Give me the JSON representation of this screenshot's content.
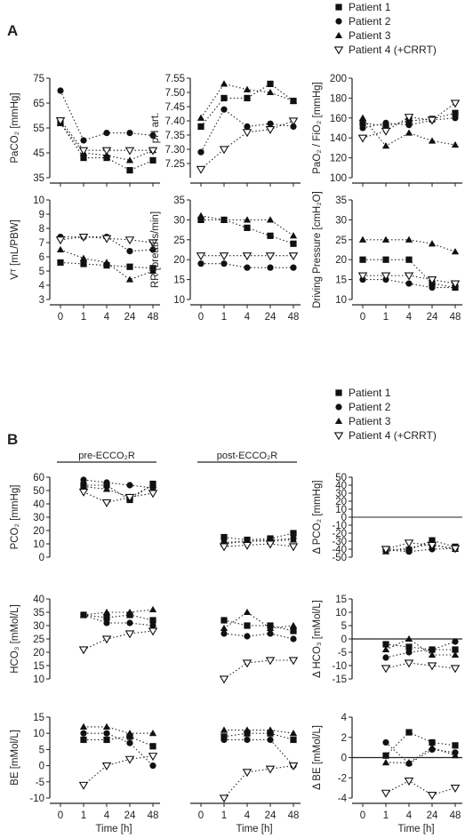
{
  "figure": {
    "panel_a_letter": "A",
    "panel_b_letter": "B",
    "legend_a": [
      {
        "label": "Patient 1",
        "marker": "square"
      },
      {
        "label": "Patient 2",
        "marker": "circle"
      },
      {
        "label": "Patient 3",
        "marker": "triangle"
      },
      {
        "label": "Patient 4 (+CRRT)",
        "marker": "open-triangle-down"
      }
    ],
    "legend_b": [
      {
        "label": "Patient 1",
        "marker": "square"
      },
      {
        "label": "Patient 2",
        "marker": "circle"
      },
      {
        "label": "Patient 3",
        "marker": "triangle"
      },
      {
        "label": "Patient 4 (+CRRT)",
        "marker": "open-triangle-down"
      }
    ],
    "xlabel": "Time [h]",
    "pre_label": "pre-ECCO₂R",
    "post_label": "post-ECCO₂R"
  },
  "chart_data": [
    {
      "id": "A-PaCO2",
      "type": "line",
      "ylabel": "PaCO₂ [mmHg]",
      "xlabel": "",
      "x": [
        "0",
        "1",
        "4",
        "24",
        "48"
      ],
      "ylim": [
        35,
        75
      ],
      "yticks": [
        35,
        45,
        55,
        65,
        75
      ],
      "series": [
        {
          "name": "Patient 1",
          "values": [
            57,
            43,
            43,
            38,
            42
          ]
        },
        {
          "name": "Patient 2",
          "values": [
            70,
            50,
            53,
            53,
            52
          ]
        },
        {
          "name": "Patient 3",
          "values": [
            57,
            45,
            44,
            42,
            46
          ]
        },
        {
          "name": "Patient 4 (+CRRT)",
          "values": [
            58,
            46,
            46,
            46,
            46
          ]
        }
      ]
    },
    {
      "id": "A-pH",
      "type": "line",
      "ylabel": "pH art.",
      "xlabel": "",
      "x": [
        "0",
        "1",
        "4",
        "24",
        "48"
      ],
      "ylim": [
        7.2,
        7.55
      ],
      "yticks": [
        7.25,
        7.3,
        7.35,
        7.4,
        7.45,
        7.5,
        7.55
      ],
      "ytick_labels": [
        "7.25",
        "7.30",
        "7.35",
        "7.40",
        "7.45",
        "7.50",
        "7.55"
      ],
      "series": [
        {
          "name": "Patient 1",
          "values": [
            7.38,
            7.48,
            7.48,
            7.53,
            7.47
          ]
        },
        {
          "name": "Patient 2",
          "values": [
            7.29,
            7.44,
            7.38,
            7.39,
            7.38
          ]
        },
        {
          "name": "Patient 3",
          "values": [
            7.41,
            7.53,
            7.51,
            7.5,
            7.47
          ]
        },
        {
          "name": "Patient 4 (+CRRT)",
          "values": [
            7.23,
            7.3,
            7.36,
            7.37,
            7.4
          ]
        }
      ]
    },
    {
      "id": "A-PF",
      "type": "line",
      "ylabel": "PaO₂ / FiO₂ [mmHg]",
      "xlabel": "",
      "x": [
        "0",
        "1",
        "4",
        "24",
        "48"
      ],
      "ylim": [
        100,
        200
      ],
      "yticks": [
        100,
        120,
        140,
        160,
        180,
        200
      ],
      "series": [
        {
          "name": "Patient 1",
          "values": [
            155,
            152,
            157,
            159,
            165
          ]
        },
        {
          "name": "Patient 2",
          "values": [
            150,
            155,
            153,
            158,
            160
          ]
        },
        {
          "name": "Patient 3",
          "values": [
            160,
            132,
            145,
            137,
            133
          ]
        },
        {
          "name": "Patient 4 (+CRRT)",
          "values": [
            140,
            147,
            161,
            158,
            175
          ]
        }
      ]
    },
    {
      "id": "A-VT",
      "type": "line",
      "ylabel": "Vᵀ [mL/PBW]",
      "xlabel": "",
      "x": [
        "0",
        "1",
        "4",
        "24",
        "48"
      ],
      "ylim": [
        3,
        10
      ],
      "yticks": [
        3,
        4,
        5,
        6,
        7,
        8,
        9,
        10
      ],
      "series": [
        {
          "name": "Patient 1",
          "values": [
            5.6,
            5.5,
            5.4,
            5.3,
            5.2
          ]
        },
        {
          "name": "Patient 2",
          "values": [
            7.4,
            7.4,
            7.4,
            6.4,
            6.5
          ]
        },
        {
          "name": "Patient 3",
          "values": [
            6.5,
            5.9,
            5.6,
            4.4,
            5.0
          ]
        },
        {
          "name": "Patient 4 (+CRRT)",
          "values": [
            7.2,
            7.4,
            7.3,
            7.2,
            7.0
          ]
        }
      ]
    },
    {
      "id": "A-RR",
      "type": "line",
      "ylabel": "RR [breaths/min]",
      "xlabel": "",
      "x": [
        "0",
        "1",
        "4",
        "24",
        "48"
      ],
      "ylim": [
        10,
        35
      ],
      "yticks": [
        10,
        15,
        20,
        25,
        30,
        35
      ],
      "series": [
        {
          "name": "Patient 1",
          "values": [
            30,
            30,
            28,
            26,
            24
          ]
        },
        {
          "name": "Patient 2",
          "values": [
            19,
            19,
            18,
            18,
            18
          ]
        },
        {
          "name": "Patient 3",
          "values": [
            31,
            30,
            30,
            30,
            26
          ]
        },
        {
          "name": "Patient 4 (+CRRT)",
          "values": [
            21,
            21,
            21,
            21,
            21
          ]
        }
      ]
    },
    {
      "id": "A-DP",
      "type": "line",
      "ylabel": "Driving Pressure [cmH₂O]",
      "xlabel": "Time [h]",
      "x": [
        "0",
        "1",
        "4",
        "24",
        "48"
      ],
      "ylim": [
        10,
        35
      ],
      "yticks": [
        10,
        15,
        20,
        25,
        30,
        35
      ],
      "series": [
        {
          "name": "Patient 1",
          "values": [
            20,
            20,
            20,
            14,
            13
          ]
        },
        {
          "name": "Patient 2",
          "values": [
            15,
            15,
            14,
            13,
            13
          ]
        },
        {
          "name": "Patient 3",
          "values": [
            25,
            25,
            25,
            24,
            22
          ]
        },
        {
          "name": "Patient 4 (+CRRT)",
          "values": [
            16,
            16,
            16,
            15,
            14
          ]
        }
      ]
    },
    {
      "id": "B-PCO2-pre",
      "type": "line",
      "ylabel": "PCO₂ [mmHg]",
      "xlabel": "",
      "x": [
        "0",
        "1",
        "4",
        "24",
        "48"
      ],
      "ylim": [
        0,
        60
      ],
      "yticks": [
        0,
        10,
        20,
        30,
        40,
        50,
        60
      ],
      "series": [
        {
          "name": "Patient 1",
          "values": [
            null,
            54,
            54,
            43,
            55
          ]
        },
        {
          "name": "Patient 2",
          "values": [
            null,
            58,
            56,
            54,
            52
          ]
        },
        {
          "name": "Patient 3",
          "values": [
            null,
            53,
            51,
            45,
            54
          ]
        },
        {
          "name": "Patient 4 (+CRRT)",
          "values": [
            null,
            49,
            41,
            45,
            48
          ]
        }
      ]
    },
    {
      "id": "B-PCO2-post",
      "type": "line",
      "ylabel": "",
      "xlabel": "",
      "x": [
        "0",
        "1",
        "4",
        "24",
        "48"
      ],
      "ylim": [
        0,
        60
      ],
      "series": [
        {
          "name": "Patient 1",
          "values": [
            null,
            15,
            13,
            14,
            18
          ]
        },
        {
          "name": "Patient 2",
          "values": [
            null,
            11,
            12,
            13,
            14
          ]
        },
        {
          "name": "Patient 3",
          "values": [
            null,
            10,
            12,
            12,
            13
          ]
        },
        {
          "name": "Patient 4 (+CRRT)",
          "values": [
            null,
            8,
            9,
            10,
            8
          ]
        }
      ]
    },
    {
      "id": "B-dPCO2",
      "type": "line",
      "ylabel": "Δ PCO₂ [mmHg]",
      "xlabel": "",
      "x": [
        "0",
        "1",
        "4",
        "24",
        "48"
      ],
      "ylim": [
        -50,
        50
      ],
      "yticks": [
        -50,
        -40,
        -30,
        -20,
        -10,
        0,
        10,
        20,
        30,
        40,
        50
      ],
      "series": [
        {
          "name": "Patient 1",
          "values": [
            null,
            -40,
            -41,
            -29,
            -37
          ]
        },
        {
          "name": "Patient 2",
          "values": [
            null,
            -41,
            -43,
            -40,
            -39
          ]
        },
        {
          "name": "Patient 3",
          "values": [
            null,
            -43,
            -38,
            -34,
            -40
          ]
        },
        {
          "name": "Patient 4 (+CRRT)",
          "values": [
            null,
            -40,
            -32,
            -35,
            -39
          ]
        }
      ]
    },
    {
      "id": "B-HCO3-pre",
      "type": "line",
      "ylabel": "HCO₃ [mMol/L]",
      "xlabel": "",
      "x": [
        "0",
        "1",
        "4",
        "24",
        "48"
      ],
      "ylim": [
        10,
        40
      ],
      "yticks": [
        10,
        15,
        20,
        25,
        30,
        35,
        40
      ],
      "series": [
        {
          "name": "Patient 1",
          "values": [
            null,
            34,
            33,
            34,
            32
          ]
        },
        {
          "name": "Patient 2",
          "values": [
            null,
            34,
            31,
            31,
            30
          ]
        },
        {
          "name": "Patient 3",
          "values": [
            null,
            34,
            35,
            35,
            36
          ]
        },
        {
          "name": "Patient 4 (+CRRT)",
          "values": [
            null,
            21,
            25,
            27,
            28
          ]
        }
      ]
    },
    {
      "id": "B-HCO3-post",
      "type": "line",
      "ylabel": "",
      "xlabel": "",
      "x": [
        "0",
        "1",
        "4",
        "24",
        "48"
      ],
      "ylim": [
        10,
        40
      ],
      "series": [
        {
          "name": "Patient 1",
          "values": [
            null,
            32,
            30,
            30,
            28
          ]
        },
        {
          "name": "Patient 2",
          "values": [
            null,
            27,
            26,
            27,
            25
          ]
        },
        {
          "name": "Patient 3",
          "values": [
            null,
            29,
            35,
            29,
            30
          ]
        },
        {
          "name": "Patient 4 (+CRRT)",
          "values": [
            null,
            10,
            16,
            17,
            17
          ]
        }
      ]
    },
    {
      "id": "B-dHCO3",
      "type": "line",
      "ylabel": "Δ HCO₃ [mMol/L]",
      "xlabel": "",
      "x": [
        "0",
        "1",
        "4",
        "24",
        "48"
      ],
      "ylim": [
        -15,
        15
      ],
      "yticks": [
        -15,
        -10,
        -5,
        0,
        5,
        10,
        15
      ],
      "series": [
        {
          "name": "Patient 1",
          "values": [
            null,
            -2,
            -3,
            -4,
            -4
          ]
        },
        {
          "name": "Patient 2",
          "values": [
            null,
            -7,
            -5,
            -4,
            -1
          ]
        },
        {
          "name": "Patient 3",
          "values": [
            null,
            -4,
            0,
            -6,
            -6
          ]
        },
        {
          "name": "Patient 4 (+CRRT)",
          "values": [
            null,
            -11,
            -9,
            -10,
            -11
          ]
        }
      ]
    },
    {
      "id": "B-BE-pre",
      "type": "line",
      "ylabel": "BE [mMol/L]",
      "xlabel": "Time [h]",
      "x": [
        "0",
        "1",
        "4",
        "24",
        "48"
      ],
      "ylim": [
        -10,
        15
      ],
      "yticks": [
        -10,
        -5,
        0,
        5,
        10,
        15
      ],
      "series": [
        {
          "name": "Patient 1",
          "values": [
            null,
            8,
            8,
            9,
            6
          ]
        },
        {
          "name": "Patient 2",
          "values": [
            null,
            10,
            10,
            7,
            0
          ]
        },
        {
          "name": "Patient 3",
          "values": [
            null,
            12,
            12,
            10,
            10
          ]
        },
        {
          "name": "Patient 4 (+CRRT)",
          "values": [
            null,
            -6,
            0,
            2,
            3
          ]
        }
      ]
    },
    {
      "id": "B-BE-post",
      "type": "line",
      "ylabel": "",
      "xlabel": "Time [h]",
      "x": [
        "0",
        "1",
        "4",
        "24",
        "48"
      ],
      "ylim": [
        -10,
        15
      ],
      "series": [
        {
          "name": "Patient 1",
          "values": [
            null,
            9,
            10,
            10,
            8
          ]
        },
        {
          "name": "Patient 2",
          "values": [
            null,
            8,
            8,
            8,
            0
          ]
        },
        {
          "name": "Patient 3",
          "values": [
            null,
            11,
            11,
            11,
            10
          ]
        },
        {
          "name": "Patient 4 (+CRRT)",
          "values": [
            null,
            -10,
            -2,
            -1,
            0
          ]
        }
      ]
    },
    {
      "id": "B-dBE",
      "type": "line",
      "ylabel": "Δ BE [mMol/L]",
      "xlabel": "Time [h]",
      "x": [
        "0",
        "1",
        "4",
        "24",
        "48"
      ],
      "ylim": [
        -4,
        4
      ],
      "yticks": [
        -4,
        -2,
        0,
        2,
        4
      ],
      "series": [
        {
          "name": "Patient 1",
          "values": [
            null,
            0.2,
            2.5,
            1.5,
            1.2
          ]
        },
        {
          "name": "Patient 2",
          "values": [
            null,
            1.5,
            -0.6,
            0.8,
            0.5
          ]
        },
        {
          "name": "Patient 3",
          "values": [
            null,
            -0.5,
            -0.5,
            1.0,
            0.2
          ]
        },
        {
          "name": "Patient 4 (+CRRT)",
          "values": [
            null,
            -3.5,
            -2.3,
            -3.7,
            -3.0
          ]
        }
      ]
    }
  ]
}
